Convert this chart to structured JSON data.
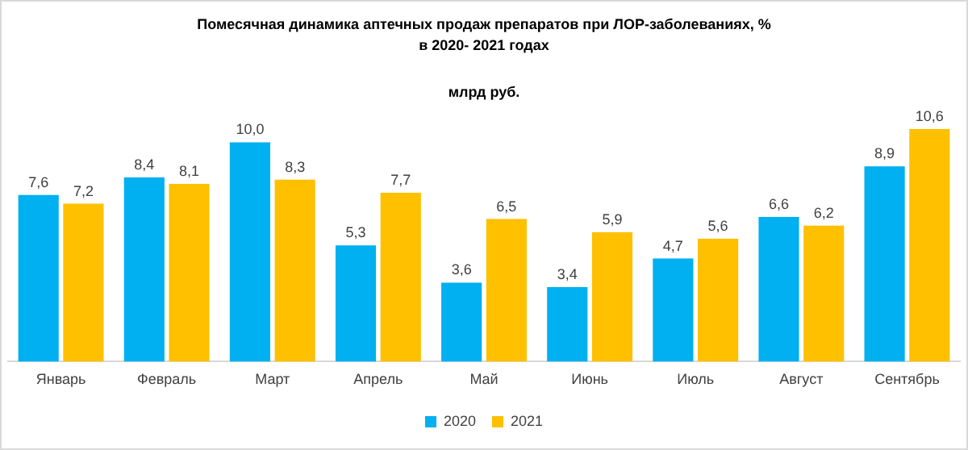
{
  "chart_data": {
    "type": "bar",
    "title": "Помесячная динамика аптечных продаж препаратов при ЛОР-заболеваниях, %\nв 2020- 2021 годах",
    "subtitle": "млрд руб.",
    "categories": [
      "Январь",
      "Февраль",
      "Март",
      "Апрель",
      "Май",
      "Июнь",
      "Июль",
      "Август",
      "Сентябрь"
    ],
    "series": [
      {
        "name": "2020",
        "color": "#00b0f0",
        "values": [
          7.6,
          8.4,
          10.0,
          5.3,
          3.6,
          3.4,
          4.7,
          6.6,
          8.9
        ],
        "value_labels": [
          "7,6",
          "8,4",
          "10,0",
          "5,3",
          "3,6",
          "3,4",
          "4,7",
          "6,6",
          "8,9"
        ]
      },
      {
        "name": "2021",
        "color": "#ffc000",
        "values": [
          7.2,
          8.1,
          8.3,
          7.7,
          6.5,
          5.9,
          5.6,
          6.2,
          10.6
        ],
        "value_labels": [
          "7,2",
          "8,1",
          "8,3",
          "7,7",
          "6,5",
          "5,9",
          "5,6",
          "6,2",
          "10,6"
        ]
      }
    ],
    "legend": "bottom",
    "grid": false
  }
}
